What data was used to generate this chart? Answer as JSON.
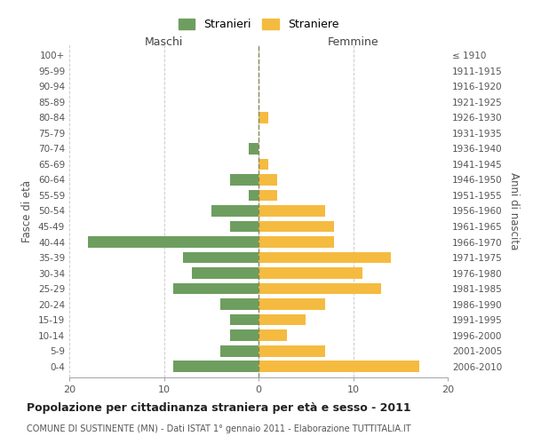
{
  "age_groups": [
    "0-4",
    "5-9",
    "10-14",
    "15-19",
    "20-24",
    "25-29",
    "30-34",
    "35-39",
    "40-44",
    "45-49",
    "50-54",
    "55-59",
    "60-64",
    "65-69",
    "70-74",
    "75-79",
    "80-84",
    "85-89",
    "90-94",
    "95-99",
    "100+"
  ],
  "birth_years": [
    "2006-2010",
    "2001-2005",
    "1996-2000",
    "1991-1995",
    "1986-1990",
    "1981-1985",
    "1976-1980",
    "1971-1975",
    "1966-1970",
    "1961-1965",
    "1956-1960",
    "1951-1955",
    "1946-1950",
    "1941-1945",
    "1936-1940",
    "1931-1935",
    "1926-1930",
    "1921-1925",
    "1916-1920",
    "1911-1915",
    "≤ 1910"
  ],
  "maschi": [
    9,
    4,
    3,
    3,
    4,
    9,
    7,
    8,
    18,
    3,
    5,
    1,
    3,
    0,
    1,
    0,
    0,
    0,
    0,
    0,
    0
  ],
  "femmine": [
    17,
    7,
    3,
    5,
    7,
    13,
    11,
    14,
    8,
    8,
    7,
    2,
    2,
    1,
    0,
    0,
    1,
    0,
    0,
    0,
    0
  ],
  "color_maschi": "#6e9e5f",
  "color_femmine": "#f5bb40",
  "title": "Popolazione per cittadinanza straniera per età e sesso - 2011",
  "subtitle": "COMUNE DI SUSTINENTE (MN) - Dati ISTAT 1° gennaio 2011 - Elaborazione TUTTITALIA.IT",
  "ylabel_left": "Fasce di età",
  "ylabel_right": "Anni di nascita",
  "label_maschi": "Maschi",
  "label_femmine": "Femmine",
  "legend_stranieri": "Stranieri",
  "legend_straniere": "Straniere",
  "xlim": 20,
  "background_color": "#ffffff",
  "grid_color": "#cccccc"
}
